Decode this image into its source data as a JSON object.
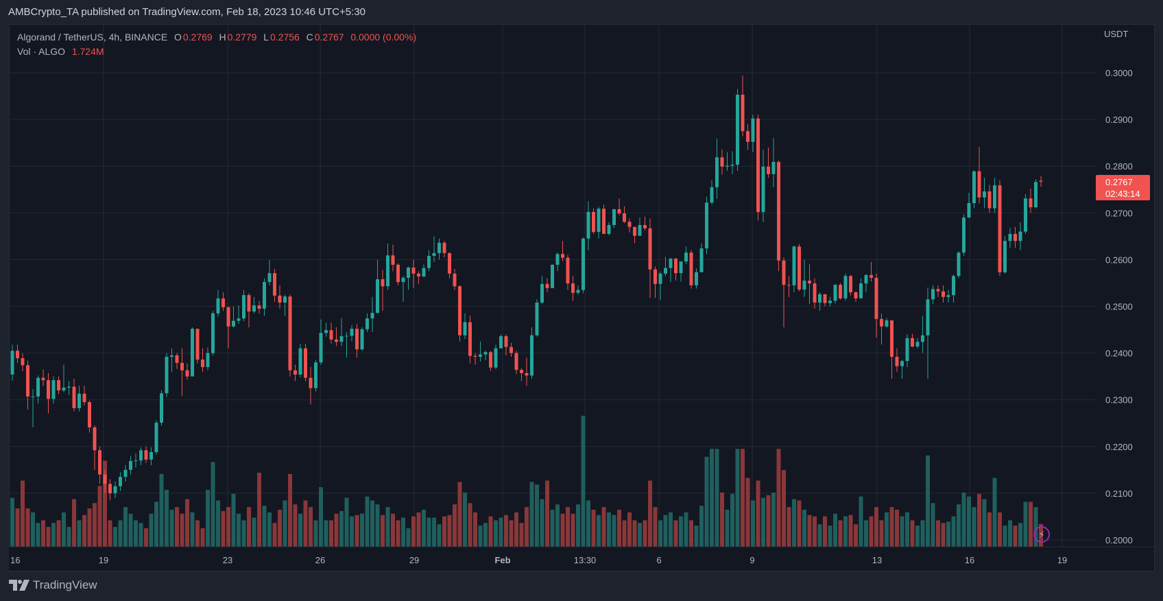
{
  "header": {
    "published": "AMBCrypto_TA published on TradingView.com, Feb 18, 2023 10:46 UTC+5:30"
  },
  "legend": {
    "symbol": "Algorand / TetherUS, 4h, BINANCE",
    "o_label": "O",
    "o": "0.2769",
    "h_label": "H",
    "h": "0.2779",
    "l_label": "L",
    "l": "0.2756",
    "c_label": "C",
    "c": "0.2767",
    "change": "0.0000 (0.00%)",
    "vol_label": "Vol · ALGO",
    "vol": "1.724M"
  },
  "price_axis": {
    "currency": "USDT",
    "ticks": [
      "0.3000",
      "0.2900",
      "0.2800",
      "0.2700",
      "0.2600",
      "0.2500",
      "0.2400",
      "0.2300",
      "0.2200",
      "0.2100",
      "0.2000"
    ],
    "last_price": "0.2767",
    "countdown": "02:43:14"
  },
  "time_axis": {
    "ticks": [
      "16",
      "19",
      "23",
      "26",
      "29",
      "Feb",
      "13:30",
      "6",
      "9",
      "13",
      "16",
      "19"
    ]
  },
  "footer": {
    "brand": "TradingView"
  },
  "colors": {
    "up": "#26a69a",
    "down": "#ef5350",
    "background": "#131722",
    "grid": "#242833",
    "last_price_box": "#f05350"
  },
  "icons": {
    "logo": "tradingview-logo-icon",
    "bolt": "lightning-icon"
  },
  "chart_data": {
    "type": "candlestick",
    "symbol": "ALGO/USDT",
    "interval": "4h",
    "ylim": [
      0.2,
      0.3
    ],
    "grid": true,
    "candle_fields": [
      "open",
      "high",
      "low",
      "close"
    ],
    "candles": [
      [
        0.2354,
        0.2418,
        0.2341,
        0.2405
      ],
      [
        0.2405,
        0.2418,
        0.2379,
        0.2389
      ],
      [
        0.2389,
        0.2399,
        0.2361,
        0.2374
      ],
      [
        0.2374,
        0.2384,
        0.2279,
        0.2307
      ],
      [
        0.2307,
        0.2323,
        0.2241,
        0.2307
      ],
      [
        0.2307,
        0.2352,
        0.2292,
        0.2347
      ],
      [
        0.2347,
        0.2365,
        0.233,
        0.2342
      ],
      [
        0.2342,
        0.2357,
        0.2271,
        0.2302
      ],
      [
        0.2302,
        0.235,
        0.2292,
        0.2342
      ],
      [
        0.2342,
        0.235,
        0.2312,
        0.232
      ],
      [
        0.232,
        0.2375,
        0.2316,
        0.2326
      ],
      [
        0.2326,
        0.234,
        0.231,
        0.2328
      ],
      [
        0.2328,
        0.2345,
        0.2275,
        0.2282
      ],
      [
        0.2282,
        0.233,
        0.2275,
        0.2313
      ],
      [
        0.2313,
        0.233,
        0.2288,
        0.2295
      ],
      [
        0.2295,
        0.2298,
        0.223,
        0.2241
      ],
      [
        0.2241,
        0.2245,
        0.215,
        0.2192
      ],
      [
        0.2192,
        0.22,
        0.212,
        0.214
      ],
      [
        0.214,
        0.215,
        0.21,
        0.212
      ],
      [
        0.212,
        0.213,
        0.2085,
        0.21
      ],
      [
        0.21,
        0.2125,
        0.209,
        0.2115
      ],
      [
        0.2115,
        0.2145,
        0.2105,
        0.2135
      ],
      [
        0.2135,
        0.216,
        0.2125,
        0.215
      ],
      [
        0.215,
        0.218,
        0.214,
        0.2169
      ],
      [
        0.2169,
        0.2185,
        0.2155,
        0.217
      ],
      [
        0.217,
        0.2198,
        0.216,
        0.2192
      ],
      [
        0.2192,
        0.22,
        0.2165,
        0.2172
      ],
      [
        0.2172,
        0.2198,
        0.216,
        0.2188
      ],
      [
        0.2188,
        0.2256,
        0.2183,
        0.2251
      ],
      [
        0.2251,
        0.232,
        0.2245,
        0.2314
      ],
      [
        0.2314,
        0.24,
        0.2306,
        0.2392
      ],
      [
        0.2392,
        0.241,
        0.236,
        0.2395
      ],
      [
        0.2395,
        0.24,
        0.2366,
        0.2379
      ],
      [
        0.2379,
        0.241,
        0.2308,
        0.2363
      ],
      [
        0.2363,
        0.2378,
        0.2343,
        0.235
      ],
      [
        0.235,
        0.2455,
        0.235,
        0.2452
      ],
      [
        0.2452,
        0.2452,
        0.2378,
        0.2386
      ],
      [
        0.2386,
        0.241,
        0.236,
        0.237
      ],
      [
        0.237,
        0.2412,
        0.2363,
        0.24
      ],
      [
        0.24,
        0.249,
        0.2395,
        0.2485
      ],
      [
        0.2485,
        0.2535,
        0.2478,
        0.2517
      ],
      [
        0.2517,
        0.253,
        0.249,
        0.2498
      ],
      [
        0.2498,
        0.25,
        0.241,
        0.2457
      ],
      [
        0.2457,
        0.25,
        0.2455,
        0.2469
      ],
      [
        0.2469,
        0.2502,
        0.2462,
        0.2474
      ],
      [
        0.2474,
        0.2535,
        0.2468,
        0.2524
      ],
      [
        0.2524,
        0.2528,
        0.2455,
        0.2489
      ],
      [
        0.2489,
        0.252,
        0.2485,
        0.2502
      ],
      [
        0.2502,
        0.2512,
        0.2485,
        0.2495
      ],
      [
        0.2495,
        0.256,
        0.248,
        0.2552
      ],
      [
        0.2552,
        0.2599,
        0.2545,
        0.2571
      ],
      [
        0.2571,
        0.258,
        0.251,
        0.2523
      ],
      [
        0.2523,
        0.2545,
        0.2495,
        0.2508
      ],
      [
        0.2508,
        0.2525,
        0.248,
        0.2521
      ],
      [
        0.2521,
        0.2525,
        0.235,
        0.2363
      ],
      [
        0.2363,
        0.2375,
        0.234,
        0.2354
      ],
      [
        0.2354,
        0.242,
        0.2348,
        0.241
      ],
      [
        0.241,
        0.242,
        0.234,
        0.2347
      ],
      [
        0.2347,
        0.237,
        0.229,
        0.2325
      ],
      [
        0.2325,
        0.2385,
        0.2318,
        0.238
      ],
      [
        0.238,
        0.2472,
        0.2375,
        0.2443
      ],
      [
        0.2443,
        0.2465,
        0.2435,
        0.2449
      ],
      [
        0.2449,
        0.2465,
        0.242,
        0.2429
      ],
      [
        0.2429,
        0.2455,
        0.2415,
        0.2424
      ],
      [
        0.2424,
        0.2475,
        0.2415,
        0.2436
      ],
      [
        0.2436,
        0.2445,
        0.239,
        0.2437
      ],
      [
        0.2437,
        0.246,
        0.2425,
        0.2452
      ],
      [
        0.2452,
        0.2462,
        0.239,
        0.2408
      ],
      [
        0.2408,
        0.2455,
        0.2405,
        0.2451
      ],
      [
        0.2451,
        0.2485,
        0.2445,
        0.2474
      ],
      [
        0.2474,
        0.252,
        0.2445,
        0.2486
      ],
      [
        0.2486,
        0.26,
        0.2485,
        0.2558
      ],
      [
        0.2558,
        0.2578,
        0.249,
        0.2543
      ],
      [
        0.2543,
        0.2635,
        0.2535,
        0.2609
      ],
      [
        0.2609,
        0.2632,
        0.2575,
        0.2589
      ],
      [
        0.2589,
        0.2592,
        0.2545,
        0.2552
      ],
      [
        0.2552,
        0.2565,
        0.251,
        0.2561
      ],
      [
        0.2561,
        0.2585,
        0.2535,
        0.2583
      ],
      [
        0.2583,
        0.26,
        0.254,
        0.257
      ],
      [
        0.257,
        0.2575,
        0.2548,
        0.2564
      ],
      [
        0.2564,
        0.259,
        0.2562,
        0.2582
      ],
      [
        0.2582,
        0.262,
        0.2575,
        0.2608
      ],
      [
        0.2608,
        0.265,
        0.2595,
        0.2614
      ],
      [
        0.2614,
        0.2645,
        0.26,
        0.2636
      ],
      [
        0.2636,
        0.264,
        0.2605,
        0.2614
      ],
      [
        0.2614,
        0.2615,
        0.256,
        0.257
      ],
      [
        0.257,
        0.258,
        0.2535,
        0.2543
      ],
      [
        0.2543,
        0.2545,
        0.2425,
        0.2438
      ],
      [
        0.2438,
        0.2485,
        0.243,
        0.2466
      ],
      [
        0.2466,
        0.248,
        0.2378,
        0.2394
      ],
      [
        0.2394,
        0.24,
        0.2375,
        0.2392
      ],
      [
        0.2392,
        0.2425,
        0.2382,
        0.2397
      ],
      [
        0.2397,
        0.2405,
        0.2385,
        0.2402
      ],
      [
        0.2402,
        0.2405,
        0.2362,
        0.2369
      ],
      [
        0.2369,
        0.2418,
        0.2365,
        0.241
      ],
      [
        0.241,
        0.244,
        0.241,
        0.2436
      ],
      [
        0.2436,
        0.244,
        0.2395,
        0.2413
      ],
      [
        0.2413,
        0.2422,
        0.2392,
        0.24
      ],
      [
        0.24,
        0.2405,
        0.2355,
        0.2364
      ],
      [
        0.2364,
        0.2368,
        0.234,
        0.2357
      ],
      [
        0.2357,
        0.239,
        0.233,
        0.2352
      ],
      [
        0.2352,
        0.2455,
        0.2345,
        0.2438
      ],
      [
        0.2438,
        0.2515,
        0.2435,
        0.2508
      ],
      [
        0.2508,
        0.2565,
        0.2505,
        0.2548
      ],
      [
        0.2548,
        0.256,
        0.253,
        0.2539
      ],
      [
        0.2539,
        0.259,
        0.2539,
        0.2589
      ],
      [
        0.2589,
        0.2615,
        0.2575,
        0.2612
      ],
      [
        0.2612,
        0.264,
        0.2597,
        0.2604
      ],
      [
        0.2604,
        0.261,
        0.2535,
        0.2549
      ],
      [
        0.2549,
        0.2565,
        0.2512,
        0.2529
      ],
      [
        0.2529,
        0.2545,
        0.2525,
        0.2535
      ],
      [
        0.2535,
        0.2648,
        0.2528,
        0.2645
      ],
      [
        0.2645,
        0.2725,
        0.262,
        0.2702
      ],
      [
        0.2702,
        0.271,
        0.2655,
        0.2659
      ],
      [
        0.2659,
        0.2713,
        0.2645,
        0.2709
      ],
      [
        0.2709,
        0.2718,
        0.2655,
        0.2655
      ],
      [
        0.2655,
        0.268,
        0.2652,
        0.2674
      ],
      [
        0.2674,
        0.2708,
        0.2668,
        0.2708
      ],
      [
        0.2708,
        0.2731,
        0.2695,
        0.2699
      ],
      [
        0.2699,
        0.2714,
        0.2678,
        0.2681
      ],
      [
        0.2681,
        0.2688,
        0.2658,
        0.267
      ],
      [
        0.267,
        0.267,
        0.2635,
        0.2651
      ],
      [
        0.2651,
        0.269,
        0.2651,
        0.2674
      ],
      [
        0.2674,
        0.2692,
        0.2662,
        0.2667
      ],
      [
        0.2667,
        0.2688,
        0.2518,
        0.2579
      ],
      [
        0.2579,
        0.2585,
        0.2518,
        0.2548
      ],
      [
        0.2548,
        0.2574,
        0.2513,
        0.257
      ],
      [
        0.257,
        0.2606,
        0.2565,
        0.2582
      ],
      [
        0.2582,
        0.2604,
        0.2552,
        0.2602
      ],
      [
        0.2602,
        0.2604,
        0.2555,
        0.2571
      ],
      [
        0.2571,
        0.2596,
        0.2553,
        0.2596
      ],
      [
        0.2596,
        0.2628,
        0.259,
        0.2615
      ],
      [
        0.2615,
        0.262,
        0.2538,
        0.2545
      ],
      [
        0.2545,
        0.2581,
        0.2538,
        0.2573
      ],
      [
        0.2573,
        0.2635,
        0.2573,
        0.2624
      ],
      [
        0.2624,
        0.2735,
        0.2612,
        0.2722
      ],
      [
        0.2722,
        0.277,
        0.2718,
        0.2755
      ],
      [
        0.2755,
        0.2859,
        0.273,
        0.2819
      ],
      [
        0.2819,
        0.2836,
        0.2782,
        0.2799
      ],
      [
        0.2799,
        0.283,
        0.279,
        0.2801
      ],
      [
        0.2801,
        0.2832,
        0.2783,
        0.2803
      ],
      [
        0.2803,
        0.2965,
        0.279,
        0.2953
      ],
      [
        0.2953,
        0.2994,
        0.2864,
        0.2875
      ],
      [
        0.2875,
        0.289,
        0.2835,
        0.2852
      ],
      [
        0.2852,
        0.291,
        0.283,
        0.2902
      ],
      [
        0.2902,
        0.291,
        0.2684,
        0.2702
      ],
      [
        0.2702,
        0.2835,
        0.268,
        0.2799
      ],
      [
        0.2799,
        0.284,
        0.2775,
        0.2783
      ],
      [
        0.2783,
        0.286,
        0.2755,
        0.2809
      ],
      [
        0.2809,
        0.2812,
        0.2575,
        0.2598
      ],
      [
        0.2598,
        0.2605,
        0.2455,
        0.2546
      ],
      [
        0.2546,
        0.2565,
        0.252,
        0.2545
      ],
      [
        0.2545,
        0.263,
        0.253,
        0.2628
      ],
      [
        0.2628,
        0.2633,
        0.2532,
        0.2536
      ],
      [
        0.2536,
        0.26,
        0.252,
        0.2555
      ],
      [
        0.2555,
        0.259,
        0.2505,
        0.2549
      ],
      [
        0.2549,
        0.256,
        0.2495,
        0.2508
      ],
      [
        0.2508,
        0.253,
        0.249,
        0.2526
      ],
      [
        0.2526,
        0.2526,
        0.25,
        0.2507
      ],
      [
        0.2507,
        0.252,
        0.25,
        0.2512
      ],
      [
        0.2512,
        0.2548,
        0.2506,
        0.2546
      ],
      [
        0.2546,
        0.255,
        0.2514,
        0.2517
      ],
      [
        0.2517,
        0.257,
        0.2512,
        0.2565
      ],
      [
        0.2565,
        0.2567,
        0.2523,
        0.253
      ],
      [
        0.253,
        0.2532,
        0.251,
        0.2517
      ],
      [
        0.2517,
        0.256,
        0.2517,
        0.2549
      ],
      [
        0.2549,
        0.2569,
        0.253,
        0.2567
      ],
      [
        0.2567,
        0.2595,
        0.2553,
        0.2561
      ],
      [
        0.2561,
        0.257,
        0.2433,
        0.2473
      ],
      [
        0.2473,
        0.2485,
        0.2418,
        0.2457
      ],
      [
        0.2457,
        0.2475,
        0.2454,
        0.247
      ],
      [
        0.247,
        0.247,
        0.2345,
        0.2392
      ],
      [
        0.2392,
        0.241,
        0.236,
        0.2372
      ],
      [
        0.2372,
        0.2385,
        0.2345,
        0.2383
      ],
      [
        0.2383,
        0.244,
        0.237,
        0.2432
      ],
      [
        0.2432,
        0.2441,
        0.2412,
        0.2414
      ],
      [
        0.2414,
        0.2432,
        0.241,
        0.2424
      ],
      [
        0.2424,
        0.248,
        0.24,
        0.2438
      ],
      [
        0.2438,
        0.254,
        0.2345,
        0.2515
      ],
      [
        0.2515,
        0.2545,
        0.2505,
        0.2537
      ],
      [
        0.2537,
        0.2545,
        0.252,
        0.2532
      ],
      [
        0.2532,
        0.2545,
        0.2508,
        0.252
      ],
      [
        0.252,
        0.2535,
        0.2508,
        0.2524
      ],
      [
        0.2524,
        0.2568,
        0.2508,
        0.2565
      ],
      [
        0.2565,
        0.2618,
        0.256,
        0.2615
      ],
      [
        0.2615,
        0.2697,
        0.2608,
        0.269
      ],
      [
        0.269,
        0.2743,
        0.269,
        0.2721
      ],
      [
        0.2721,
        0.2791,
        0.271,
        0.2789
      ],
      [
        0.2789,
        0.2841,
        0.272,
        0.2733
      ],
      [
        0.2733,
        0.2775,
        0.271,
        0.2746
      ],
      [
        0.2746,
        0.276,
        0.27,
        0.271
      ],
      [
        0.271,
        0.2775,
        0.27,
        0.2759
      ],
      [
        0.2759,
        0.277,
        0.2565,
        0.2573
      ],
      [
        0.2573,
        0.265,
        0.257,
        0.264
      ],
      [
        0.264,
        0.2668,
        0.2625,
        0.2655
      ],
      [
        0.2655,
        0.267,
        0.2625,
        0.264
      ],
      [
        0.264,
        0.268,
        0.262,
        0.266
      ],
      [
        0.266,
        0.274,
        0.2655,
        0.2731
      ],
      [
        0.2731,
        0.2752,
        0.27,
        0.2712
      ],
      [
        0.2712,
        0.2772,
        0.271,
        0.2766
      ],
      [
        0.2769,
        0.2779,
        0.2756,
        0.2767
      ]
    ],
    "volume_unit": "M",
    "volume": [
      3.7,
      2.9,
      5.0,
      2.9,
      2.6,
      1.8,
      2.0,
      1.5,
      1.8,
      2.0,
      2.6,
      1.5,
      3.6,
      2.0,
      2.4,
      2.9,
      3.3,
      4.6,
      6.5,
      2.0,
      1.5,
      2.0,
      3.0,
      2.5,
      2.0,
      1.8,
      1.4,
      2.5,
      3.4,
      5.5,
      4.3,
      2.8,
      3.0,
      2.5,
      3.6,
      2.6,
      2.0,
      1.4,
      4.3,
      6.4,
      3.5,
      2.7,
      3.0,
      4.0,
      2.5,
      2.0,
      3.0,
      2.2,
      5.6,
      3.1,
      2.6,
      1.8,
      2.8,
      3.5,
      5.5,
      3.2,
      2.5,
      3.5,
      3.0,
      2.0,
      4.5,
      2.0,
      2.0,
      2.5,
      2.7,
      3.7,
      2.3,
      2.4,
      2.5,
      3.8,
      3.5,
      3.2,
      2.4,
      3.0,
      2.5,
      2.0,
      2.2,
      1.4,
      2.3,
      2.6,
      2.8,
      2.2,
      2.2,
      1.7,
      2.3,
      2.4,
      3.2,
      4.9,
      4.1,
      3.3,
      2.6,
      1.6,
      1.8,
      2.3,
      2.0,
      2.2,
      2.4,
      2.0,
      2.6,
      1.8,
      3.0,
      4.9,
      4.7,
      3.6,
      5.0,
      2.8,
      3.2,
      2.5,
      3.0,
      2.5,
      3.2,
      9.9,
      3.5,
      2.8,
      2.4,
      3.0,
      2.6,
      2.4,
      2.8,
      2.0,
      2.6,
      2.0,
      1.8,
      2.0,
      5.0,
      3.0,
      2.0,
      2.4,
      2.6,
      2.0,
      2.3,
      2.6,
      2.0,
      1.6,
      3.1,
      6.8,
      7.4,
      7.4,
      4.1,
      2.8,
      4.0,
      7.4,
      7.4,
      5.2,
      3.5,
      5.0,
      3.7,
      3.9,
      4.1,
      7.4,
      5.8,
      3.0,
      3.6,
      3.5,
      2.8,
      2.4,
      2.3,
      1.7,
      2.3,
      1.6,
      2.5,
      2.0,
      2.3,
      2.4,
      1.7,
      3.8,
      2.0,
      2.3,
      3.0,
      2.0,
      2.6,
      3.0,
      2.8,
      2.3,
      2.6,
      2.0,
      1.6,
      2.0,
      6.9,
      3.3,
      2.0,
      1.8,
      1.9,
      2.3,
      3.2,
      4.1,
      3.8,
      3.0,
      4.0,
      3.6,
      2.6,
      5.2,
      2.6,
      1.6,
      2.0,
      1.6,
      1.8,
      3.4,
      3.4,
      3.0,
      1.724
    ]
  }
}
